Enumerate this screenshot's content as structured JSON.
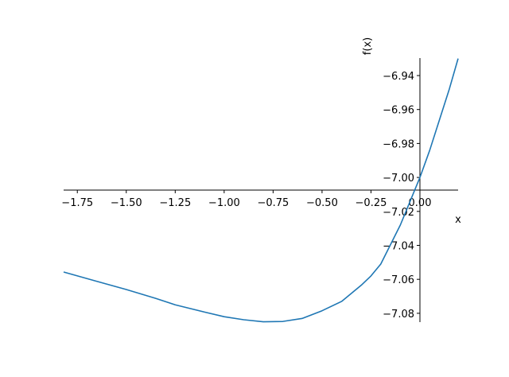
{
  "chart_data": {
    "type": "line",
    "x_label": "x",
    "y_label": "f(x)",
    "xlim": [
      -1.82,
      0.195
    ],
    "ylim": [
      -7.0852,
      -6.9297
    ],
    "xticks": [
      {
        "value": -1.75,
        "label": "−1.75"
      },
      {
        "value": -1.5,
        "label": "−1.50"
      },
      {
        "value": -1.25,
        "label": "−1.25"
      },
      {
        "value": -1.0,
        "label": "−1.00"
      },
      {
        "value": -0.75,
        "label": "−0.75"
      },
      {
        "value": -0.5,
        "label": "−0.50"
      },
      {
        "value": -0.25,
        "label": "−0.25"
      },
      {
        "value": 0.0,
        "label": "0.00"
      }
    ],
    "yticks": [
      {
        "value": -7.08,
        "label": "−7.08"
      },
      {
        "value": -7.06,
        "label": "−7.06"
      },
      {
        "value": -7.04,
        "label": "−7.04"
      },
      {
        "value": -7.02,
        "label": "−7.02"
      },
      {
        "value": -7.0,
        "label": "−7.00"
      },
      {
        "value": -6.98,
        "label": "−6.98"
      },
      {
        "value": -6.96,
        "label": "−6.96"
      },
      {
        "value": -6.94,
        "label": "−6.94"
      }
    ],
    "series": [
      {
        "color": "#1f77b4",
        "x": [
          -1.82,
          -1.65,
          -1.5,
          -1.35,
          -1.25,
          -1.1,
          -1.0,
          -0.9,
          -0.8,
          -0.7,
          -0.6,
          -0.5,
          -0.4,
          -0.3,
          -0.25,
          -0.2,
          -0.1,
          0.0,
          0.05,
          0.1,
          0.15,
          0.195
        ],
        "values": [
          -7.0557,
          -7.0612,
          -7.066,
          -7.0712,
          -7.075,
          -7.0793,
          -7.082,
          -7.0838,
          -7.085,
          -7.0848,
          -7.083,
          -7.0785,
          -7.073,
          -7.0635,
          -7.058,
          -7.051,
          -7.028,
          -7.0,
          -6.984,
          -6.966,
          -6.948,
          -6.93
        ]
      }
    ]
  }
}
